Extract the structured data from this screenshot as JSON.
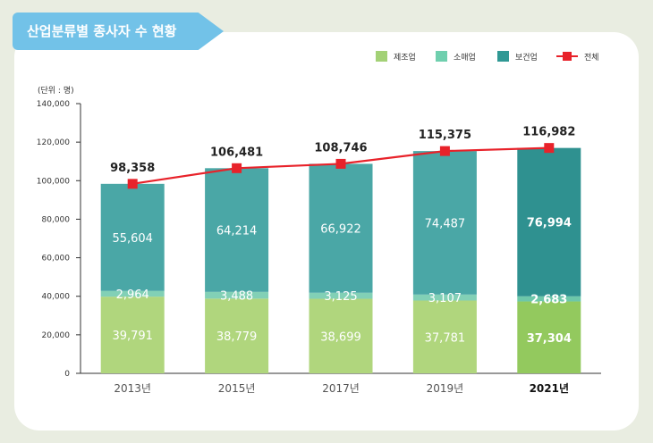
{
  "title": "산업분류별 종사자 수 현황",
  "unit_label": "(단위 : 명)",
  "legend": [
    {
      "label": "제조업",
      "color": "#a3d176",
      "kind": "box"
    },
    {
      "label": "소매업",
      "color": "#6fcfae",
      "kind": "box"
    },
    {
      "label": "보건업",
      "color": "#2f9894",
      "kind": "box"
    },
    {
      "label": "전체",
      "color": "#e8222a",
      "kind": "line"
    }
  ],
  "chart_data": {
    "type": "bar",
    "stacked": true,
    "categories": [
      "2013년",
      "2015년",
      "2017년",
      "2019년",
      "2021년"
    ],
    "highlight_category": "2021년",
    "series": [
      {
        "name": "제조업",
        "values": [
          39791,
          38779,
          38699,
          37781,
          37304
        ],
        "color": "#b0d67d",
        "highlight_color": "#93c95e"
      },
      {
        "name": "소매업",
        "values": [
          2964,
          3488,
          3125,
          3107,
          2683
        ],
        "color": "#82d0b6",
        "highlight_color": "#6dc7a9"
      },
      {
        "name": "보건업",
        "values": [
          55604,
          64214,
          66922,
          74487,
          76994
        ],
        "color": "#4aa7a6",
        "highlight_color": "#2f9190"
      }
    ],
    "line_series": {
      "name": "전체",
      "values": [
        98358,
        106481,
        108746,
        115375,
        116982
      ],
      "color": "#e8222a"
    },
    "value_labels": {
      "제조업": [
        "39,791",
        "38,779",
        "38,699",
        "37,781",
        "37,304"
      ],
      "소매업": [
        "2,964",
        "3,488",
        "3,125",
        "3,107",
        "2,683"
      ],
      "보건업": [
        "55,604",
        "64,214",
        "66,922",
        "74,487",
        "76,994"
      ],
      "전체": [
        "98,358",
        "106,481",
        "108,746",
        "115,375",
        "116,982"
      ]
    },
    "ylim": [
      0,
      140000
    ],
    "yticks": [
      0,
      20000,
      40000,
      60000,
      80000,
      100000,
      120000,
      140000
    ],
    "ytick_labels": [
      "0",
      "20,000",
      "40,000",
      "60,000",
      "80,000",
      "100,000",
      "120,000",
      "140,000"
    ],
    "legend_position": "top-right",
    "grid": false
  }
}
